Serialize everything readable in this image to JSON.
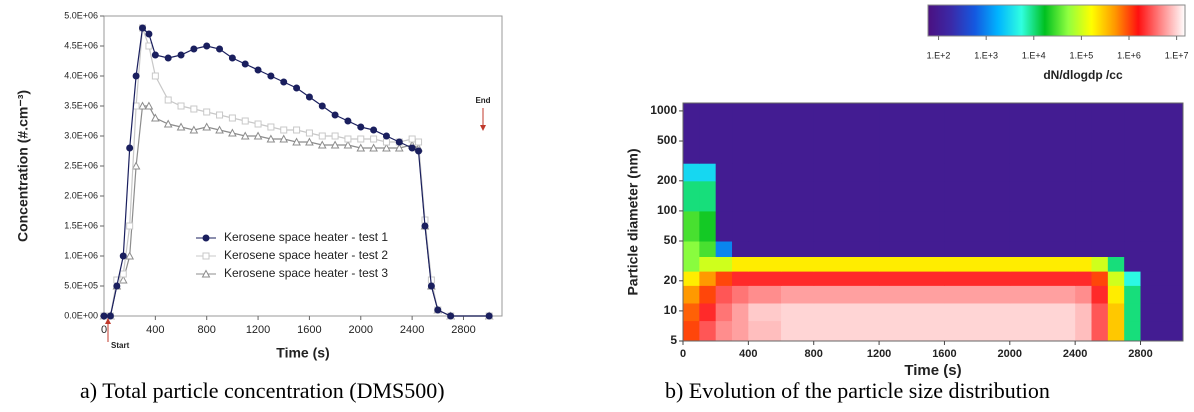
{
  "chart_data": [
    {
      "type": "line",
      "caption": "a) Total particle concentration (DMS500)",
      "x_label": "Time (s)",
      "y_label": "Concentration (#.cm⁻³)",
      "annotations": [
        "Start",
        "End"
      ],
      "xlim": [
        0,
        3100
      ],
      "ylim": [
        0,
        5000000
      ],
      "xticks": [
        0,
        400,
        800,
        1200,
        1600,
        2000,
        2400,
        2800
      ],
      "yticks": [
        {
          "value": 0,
          "label": "0.0E+00"
        },
        {
          "value": 500000,
          "label": "5.0E+05"
        },
        {
          "value": 1000000,
          "label": "1.0E+06"
        },
        {
          "value": 1500000,
          "label": "1.5E+06"
        },
        {
          "value": 2000000,
          "label": "2.0E+06"
        },
        {
          "value": 2500000,
          "label": "2.5E+06"
        },
        {
          "value": 3000000,
          "label": "3.0E+06"
        },
        {
          "value": 3500000,
          "label": "3.5E+06"
        },
        {
          "value": 4000000,
          "label": "4.0E+06"
        },
        {
          "value": 4500000,
          "label": "4.5E+06"
        },
        {
          "value": 5000000,
          "label": "5.0E+06"
        }
      ],
      "x": [
        0,
        50,
        100,
        150,
        200,
        250,
        300,
        350,
        400,
        500,
        600,
        700,
        800,
        900,
        1000,
        1100,
        1200,
        1300,
        1400,
        1500,
        1600,
        1700,
        1800,
        1900,
        2000,
        2100,
        2200,
        2300,
        2400,
        2450,
        2500,
        2550,
        2600,
        2700,
        3000
      ],
      "series": [
        {
          "name": "Kerosene space heater - test 1",
          "color": "#1a1f5e",
          "marker": "circle",
          "filled": true,
          "values": [
            0,
            0,
            500000,
            1000000,
            2800000,
            4000000,
            4800000,
            4700000,
            4350000,
            4300000,
            4350000,
            4450000,
            4500000,
            4450000,
            4300000,
            4200000,
            4100000,
            4000000,
            3900000,
            3800000,
            3650000,
            3500000,
            3350000,
            3250000,
            3150000,
            3100000,
            3000000,
            2900000,
            2800000,
            2750000,
            1500000,
            500000,
            100000,
            0,
            0
          ]
        },
        {
          "name": "Kerosene space heater - test 2",
          "color": "#c8c8c8",
          "marker": "square",
          "filled": false,
          "values": [
            0,
            0,
            600000,
            700000,
            1500000,
            3500000,
            4800000,
            4500000,
            4000000,
            3600000,
            3500000,
            3450000,
            3400000,
            3350000,
            3300000,
            3250000,
            3200000,
            3150000,
            3100000,
            3100000,
            3050000,
            3000000,
            3000000,
            2950000,
            2950000,
            2950000,
            2900000,
            2900000,
            2950000,
            2900000,
            1600000,
            600000,
            100000,
            0,
            0
          ]
        },
        {
          "name": "Kerosene space heater - test 3",
          "color": "#8c8c8c",
          "marker": "triangle",
          "filled": false,
          "values": [
            0,
            0,
            500000,
            600000,
            1000000,
            2500000,
            3500000,
            3500000,
            3300000,
            3200000,
            3150000,
            3100000,
            3150000,
            3100000,
            3050000,
            3000000,
            3000000,
            2950000,
            2950000,
            2900000,
            2900000,
            2850000,
            2850000,
            2850000,
            2800000,
            2800000,
            2800000,
            2800000,
            2850000,
            2800000,
            1500000,
            500000,
            100000,
            0,
            0
          ]
        }
      ]
    },
    {
      "type": "heatmap",
      "caption": "b) Evolution of the particle size distribution",
      "x_label": "Time (s)",
      "y_label": "Particle diameter (nm)",
      "colorbar_label": "dN/dlogdp /cc",
      "xlim": [
        0,
        3060
      ],
      "ylim": [
        5,
        1200
      ],
      "log_y": true,
      "xticks": [
        0,
        400,
        800,
        1200,
        1600,
        2000,
        2400,
        2800
      ],
      "yticks": [
        5,
        10,
        20,
        50,
        100,
        200,
        500,
        1000
      ],
      "clim": [
        60,
        15000000
      ],
      "cticks": [
        {
          "value": 100,
          "label": "1.E+2"
        },
        {
          "value": 1000,
          "label": "1.E+3"
        },
        {
          "value": 10000,
          "label": "1.E+4"
        },
        {
          "value": 100000,
          "label": "1.E+5"
        },
        {
          "value": 1000000,
          "label": "1.E+6"
        },
        {
          "value": 10000000,
          "label": "1.E+7"
        }
      ],
      "colors": [
        "#4b1080",
        "#3a2aa8",
        "#1458e0",
        "#00b4ff",
        "#30ffe0",
        "#00c020",
        "#90ff40",
        "#ffff00",
        "#ff9800",
        "#ff1010",
        "#ff8a8a",
        "#ffffff"
      ],
      "x_bins": [
        0,
        100,
        200,
        300,
        400,
        600,
        800,
        1200,
        1600,
        2000,
        2400,
        2500,
        2600,
        2700,
        2800,
        3060
      ],
      "y_bins": [
        5,
        8,
        12,
        18,
        25,
        35,
        50,
        100,
        200,
        300,
        1200
      ],
      "z": [
        [
          1000000,
          3000000,
          5000000,
          6000000,
          8000000,
          10000000,
          10000000,
          10000000,
          10000000,
          10000000,
          8000000,
          3000000,
          300000,
          10000,
          100
        ],
        [
          800000,
          2000000,
          4000000,
          6000000,
          9000000,
          10000000,
          10000000,
          10000000,
          10000000,
          10000000,
          8000000,
          3000000,
          300000,
          10000,
          100
        ],
        [
          500000,
          1000000,
          3000000,
          4000000,
          5000000,
          6000000,
          6000000,
          6000000,
          6000000,
          6000000,
          5000000,
          2000000,
          200000,
          10000,
          100
        ],
        [
          200000,
          500000,
          1000000,
          2000000,
          2000000,
          2000000,
          2000000,
          2000000,
          2000000,
          2000000,
          2000000,
          1000000,
          100000,
          5000,
          100
        ],
        [
          50000,
          100000,
          100000,
          200000,
          200000,
          200000,
          200000,
          200000,
          200000,
          200000,
          200000,
          100000,
          10000,
          100,
          100
        ],
        [
          50000,
          30000,
          1000,
          100,
          100,
          100,
          100,
          100,
          100,
          100,
          100,
          100,
          100,
          100,
          100
        ],
        [
          30000,
          20000,
          100,
          100,
          100,
          100,
          100,
          100,
          100,
          100,
          100,
          100,
          100,
          100,
          100
        ],
        [
          10000,
          10000,
          100,
          100,
          100,
          100,
          100,
          100,
          100,
          100,
          100,
          100,
          100,
          100,
          100
        ],
        [
          3000,
          3000,
          100,
          100,
          100,
          100,
          100,
          100,
          100,
          100,
          100,
          100,
          100,
          100,
          100
        ],
        [
          100,
          100,
          100,
          100,
          100,
          100,
          100,
          100,
          100,
          100,
          100,
          100,
          100,
          100,
          100
        ]
      ]
    }
  ]
}
